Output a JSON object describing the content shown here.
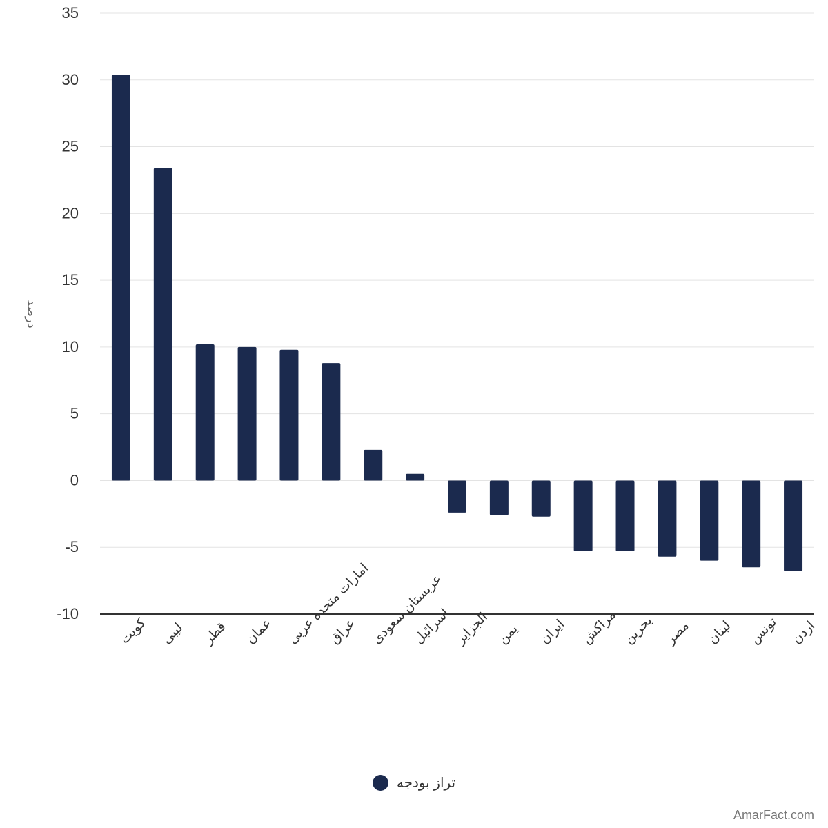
{
  "chart_data": {
    "type": "bar",
    "title": "",
    "xlabel": "",
    "ylabel": "درصد",
    "ylim": [
      -10,
      35
    ],
    "yticks": [
      35,
      30,
      25,
      20,
      15,
      10,
      5,
      0,
      -5,
      -10
    ],
    "grid": true,
    "legend_position": "bottom-center",
    "categories": [
      "کویت",
      "لیبی",
      "قطر",
      "عمان",
      "امارات متحده عربی",
      "عراق",
      "عربستان سعودی",
      "اسرائیل",
      "الجزایر",
      "یمن",
      "ایران",
      "مراکش",
      "بحرین",
      "مصر",
      "لبنان",
      "تونس",
      "اردن"
    ],
    "series": [
      {
        "name": "تراز بودجه",
        "color": "#1b2a4e",
        "values": [
          30.4,
          23.4,
          10.2,
          10.0,
          9.8,
          8.8,
          2.3,
          0.5,
          -2.4,
          -2.6,
          -2.7,
          -5.3,
          -5.3,
          -5.7,
          -6.0,
          -6.5,
          -6.8
        ]
      }
    ]
  },
  "credit": "AmarFact.com"
}
